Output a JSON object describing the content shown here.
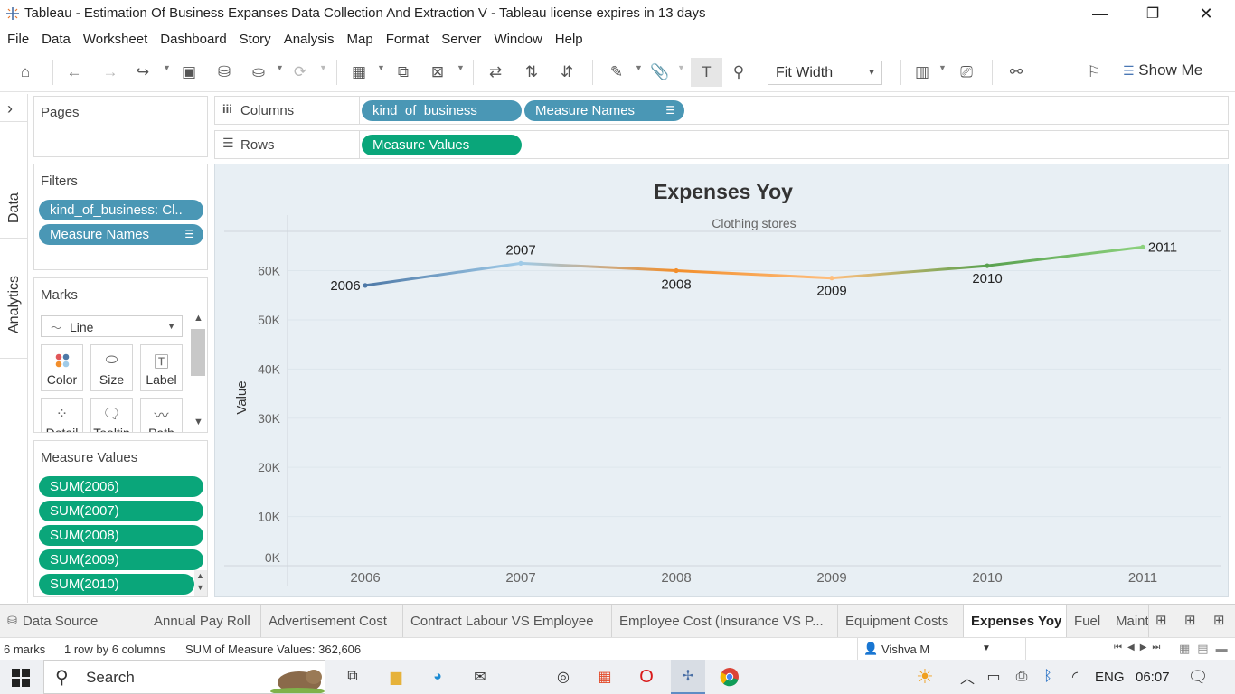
{
  "window": {
    "title": "Tableau - Estimation Of Business Expanses Data Collection And Extraction V - Tableau license expires in 13 days",
    "minimize": "—",
    "maximize": "❐",
    "close": "✕"
  },
  "menu": [
    "File",
    "Data",
    "Worksheet",
    "Dashboard",
    "Story",
    "Analysis",
    "Map",
    "Format",
    "Server",
    "Window",
    "Help"
  ],
  "toolbar": {
    "fit_value": "Fit Width",
    "show_me": "Show Me"
  },
  "side_tabs": {
    "data": "Data",
    "analytics": "Analytics",
    "expand": "›"
  },
  "pages_card": {
    "title": "Pages"
  },
  "filters_card": {
    "title": "Filters",
    "pills": [
      "kind_of_business: Cl..",
      "Measure Names"
    ]
  },
  "marks_card": {
    "title": "Marks",
    "mark_type": "Line",
    "buttons": [
      "Color",
      "Size",
      "Label",
      "Detail",
      "Tooltip",
      "Path"
    ]
  },
  "measure_values_card": {
    "title": "Measure Values",
    "pills": [
      "SUM(2006)",
      "SUM(2007)",
      "SUM(2008)",
      "SUM(2009)",
      "SUM(2010)"
    ]
  },
  "shelves": {
    "columns_label": "Columns",
    "columns_pills": [
      "kind_of_business",
      "Measure Names"
    ],
    "rows_label": "Rows",
    "rows_pills": [
      "Measure Values"
    ]
  },
  "chart_data": {
    "type": "line",
    "title": "Expenses Yoy",
    "subtitle": "Clothing stores",
    "xlabel": "",
    "ylabel": "Value",
    "categories": [
      "2006",
      "2007",
      "2008",
      "2009",
      "2010",
      "2011"
    ],
    "values": [
      57000,
      61500,
      60000,
      58500,
      61000,
      64800
    ],
    "data_labels": [
      "2006",
      "2007",
      "2008",
      "2009",
      "2010",
      "2011"
    ],
    "colors": [
      "#4e79a7",
      "#a0cbe8",
      "#f28e2b",
      "#ffbe7d",
      "#59a14f",
      "#8cd17d"
    ],
    "yticks": [
      "0K",
      "10K",
      "20K",
      "30K",
      "40K",
      "50K",
      "60K"
    ],
    "ylim": [
      0,
      68000
    ],
    "grid": true
  },
  "sheet_tabs": {
    "data_source": "Data Source",
    "tabs": [
      "Annual Pay Roll",
      "Advertisement Cost",
      "Contract Labour VS Employee",
      "Employee Cost (Insurance VS P...",
      "Equipment Costs",
      "Expenses Yoy",
      "Fuel",
      "Maint"
    ],
    "active": "Expenses Yoy"
  },
  "status": {
    "marks": "6 marks",
    "rows": "1 row by 6 columns",
    "sum": "SUM of Measure Values: 362,606",
    "user": "Vishva M"
  },
  "taskbar": {
    "search": "Search",
    "lang": "ENG",
    "time": "06:07"
  }
}
